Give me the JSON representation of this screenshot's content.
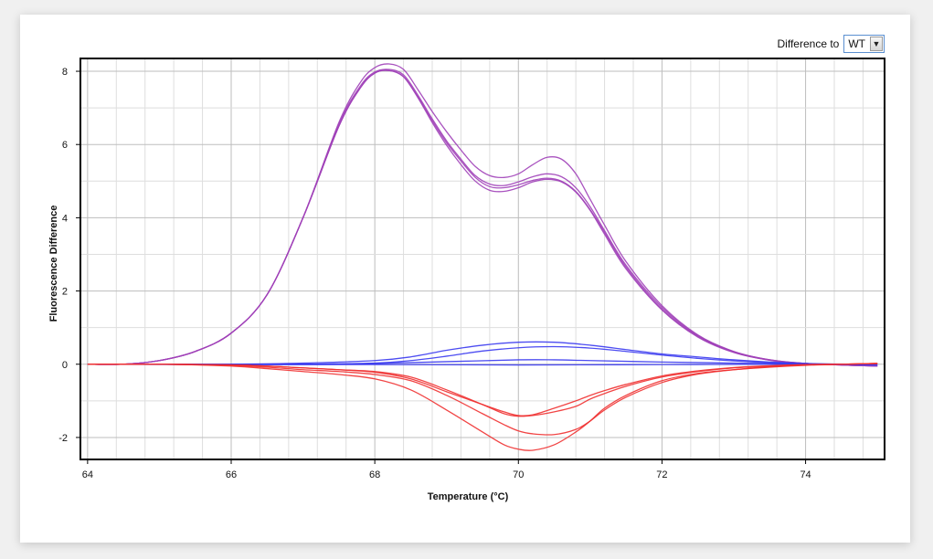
{
  "toolbar": {
    "difference_label": "Difference to",
    "difference_value": "WT",
    "dropdown_icon": "chevron-down-icon"
  },
  "chart_data": {
    "type": "line",
    "title": "",
    "xlabel": "Temperature (°C)",
    "ylabel": "Fluorescence Difference",
    "xlim": [
      63.9,
      75.1
    ],
    "ylim": [
      -2.6,
      8.35
    ],
    "xticks": [
      64,
      66,
      68,
      70,
      72,
      74
    ],
    "yticks": [
      -2,
      0,
      2,
      4,
      6,
      8
    ],
    "grid": true,
    "colors": {
      "purple": "#a040b8",
      "blue": "#3838f0",
      "red": "#f03030"
    },
    "series": [
      {
        "group": "purple",
        "x": [
          64.0,
          64.5,
          65.0,
          65.5,
          66.0,
          66.5,
          67.0,
          67.5,
          67.8,
          68.0,
          68.2,
          68.4,
          68.6,
          68.8,
          69.0,
          69.2,
          69.4,
          69.6,
          69.8,
          70.0,
          70.2,
          70.4,
          70.6,
          70.8,
          71.0,
          71.2,
          71.5,
          72.0,
          72.5,
          73.0,
          73.5,
          74.0,
          74.5,
          75.0
        ],
        "y": [
          0.0,
          0.0,
          0.1,
          0.35,
          0.85,
          1.9,
          4.0,
          6.6,
          7.7,
          8.1,
          8.2,
          8.05,
          7.5,
          6.9,
          6.35,
          5.85,
          5.4,
          5.15,
          5.1,
          5.2,
          5.45,
          5.65,
          5.6,
          5.2,
          4.5,
          3.8,
          2.8,
          1.6,
          0.8,
          0.35,
          0.12,
          0.02,
          -0.02,
          -0.05
        ]
      },
      {
        "group": "purple",
        "x": [
          64.0,
          64.5,
          65.0,
          65.5,
          66.0,
          66.5,
          67.0,
          67.5,
          67.8,
          68.0,
          68.2,
          68.4,
          68.6,
          68.8,
          69.0,
          69.2,
          69.4,
          69.6,
          69.8,
          70.0,
          70.2,
          70.4,
          70.6,
          70.8,
          71.0,
          71.2,
          71.5,
          72.0,
          72.5,
          73.0,
          73.5,
          74.0,
          74.5,
          75.0
        ],
        "y": [
          0.0,
          0.0,
          0.1,
          0.35,
          0.85,
          1.9,
          4.0,
          6.55,
          7.6,
          7.98,
          8.05,
          7.9,
          7.35,
          6.7,
          6.1,
          5.6,
          5.15,
          4.92,
          4.88,
          4.98,
          5.12,
          5.2,
          5.12,
          4.82,
          4.3,
          3.65,
          2.7,
          1.55,
          0.78,
          0.34,
          0.12,
          0.02,
          -0.02,
          -0.05
        ]
      },
      {
        "group": "purple",
        "x": [
          64.0,
          64.5,
          65.0,
          65.5,
          66.0,
          66.5,
          67.0,
          67.5,
          67.8,
          68.0,
          68.2,
          68.4,
          68.6,
          68.8,
          69.0,
          69.2,
          69.4,
          69.6,
          69.8,
          70.0,
          70.2,
          70.4,
          70.6,
          70.8,
          71.0,
          71.2,
          71.5,
          72.0,
          72.5,
          73.0,
          73.5,
          74.0,
          74.5,
          75.0
        ],
        "y": [
          0.0,
          0.0,
          0.1,
          0.35,
          0.85,
          1.9,
          4.0,
          6.5,
          7.55,
          7.95,
          8.02,
          7.85,
          7.3,
          6.65,
          6.05,
          5.55,
          5.1,
          4.85,
          4.82,
          4.9,
          5.02,
          5.08,
          5.0,
          4.72,
          4.22,
          3.6,
          2.65,
          1.5,
          0.76,
          0.33,
          0.11,
          0.02,
          -0.02,
          -0.05
        ]
      },
      {
        "group": "purple",
        "x": [
          64.0,
          64.5,
          65.0,
          65.5,
          66.0,
          66.5,
          67.0,
          67.5,
          67.8,
          68.0,
          68.2,
          68.4,
          68.6,
          68.8,
          69.0,
          69.2,
          69.4,
          69.6,
          69.8,
          70.0,
          70.2,
          70.4,
          70.6,
          70.8,
          71.0,
          71.2,
          71.5,
          72.0,
          72.5,
          73.0,
          73.5,
          74.0,
          74.5,
          75.0
        ],
        "y": [
          0.0,
          0.0,
          0.1,
          0.35,
          0.85,
          1.9,
          4.0,
          6.5,
          7.55,
          7.95,
          8.02,
          7.85,
          7.28,
          6.6,
          5.98,
          5.45,
          5.0,
          4.75,
          4.72,
          4.82,
          4.98,
          5.05,
          4.98,
          4.7,
          4.2,
          3.55,
          2.6,
          1.48,
          0.74,
          0.32,
          0.11,
          0.02,
          -0.02,
          -0.05
        ]
      },
      {
        "group": "blue",
        "x": [
          64.0,
          65.0,
          66.0,
          67.0,
          68.0,
          68.5,
          69.0,
          69.5,
          70.0,
          70.5,
          71.0,
          71.5,
          72.0,
          72.5,
          73.0,
          73.5,
          74.0,
          75.0
        ],
        "y": [
          0.0,
          0.0,
          0.0,
          0.03,
          0.1,
          0.2,
          0.38,
          0.52,
          0.6,
          0.6,
          0.52,
          0.4,
          0.28,
          0.2,
          0.12,
          0.06,
          0.02,
          -0.02
        ]
      },
      {
        "group": "blue",
        "x": [
          64.0,
          65.0,
          66.0,
          67.0,
          68.0,
          68.5,
          69.0,
          69.5,
          70.0,
          70.5,
          71.0,
          71.5,
          72.0,
          72.5,
          73.0,
          73.5,
          74.0,
          75.0
        ],
        "y": [
          0.0,
          0.0,
          0.0,
          0.0,
          0.03,
          0.1,
          0.22,
          0.36,
          0.45,
          0.48,
          0.44,
          0.35,
          0.25,
          0.16,
          0.09,
          0.04,
          0.01,
          -0.02
        ]
      },
      {
        "group": "blue",
        "x": [
          64.0,
          65.0,
          66.0,
          67.0,
          68.0,
          69.0,
          70.0,
          70.5,
          71.0,
          72.0,
          73.0,
          74.0,
          75.0
        ],
        "y": [
          0.0,
          0.0,
          0.0,
          0.0,
          0.02,
          0.07,
          0.12,
          0.12,
          0.1,
          0.06,
          0.03,
          0.01,
          0.0
        ]
      },
      {
        "group": "blue",
        "x": [
          64.0,
          66.0,
          68.0,
          70.0,
          72.0,
          74.0,
          75.0
        ],
        "y": [
          0.0,
          -0.01,
          -0.01,
          -0.02,
          -0.01,
          0.0,
          0.0
        ]
      },
      {
        "group": "red",
        "x": [
          64.0,
          65.0,
          66.0,
          66.5,
          67.0,
          67.5,
          68.0,
          68.5,
          69.0,
          69.5,
          69.8,
          70.0,
          70.2,
          70.5,
          70.8,
          71.0,
          71.2,
          71.5,
          72.0,
          72.5,
          73.0,
          73.5,
          74.0,
          74.5,
          75.0
        ],
        "y": [
          0.0,
          0.0,
          -0.05,
          -0.12,
          -0.2,
          -0.28,
          -0.4,
          -0.7,
          -1.25,
          -1.85,
          -2.2,
          -2.32,
          -2.35,
          -2.2,
          -1.85,
          -1.55,
          -1.2,
          -0.85,
          -0.45,
          -0.25,
          -0.15,
          -0.08,
          -0.03,
          0.0,
          0.02
        ]
      },
      {
        "group": "red",
        "x": [
          64.0,
          65.0,
          66.0,
          66.5,
          67.0,
          67.5,
          68.0,
          68.5,
          69.0,
          69.5,
          69.8,
          70.0,
          70.2,
          70.5,
          70.8,
          71.0,
          71.2,
          71.5,
          72.0,
          72.5,
          73.0,
          73.5,
          74.0,
          74.5,
          75.0
        ],
        "y": [
          0.0,
          0.0,
          -0.04,
          -0.08,
          -0.15,
          -0.2,
          -0.28,
          -0.45,
          -0.85,
          -1.35,
          -1.65,
          -1.82,
          -1.9,
          -1.92,
          -1.78,
          -1.55,
          -1.25,
          -0.9,
          -0.5,
          -0.27,
          -0.15,
          -0.07,
          -0.02,
          0.0,
          0.02
        ]
      },
      {
        "group": "red",
        "x": [
          64.0,
          65.0,
          66.0,
          66.5,
          67.0,
          67.5,
          68.0,
          68.5,
          69.0,
          69.5,
          69.8,
          70.0,
          70.2,
          70.5,
          70.8,
          71.0,
          71.2,
          71.5,
          72.0,
          72.5,
          73.0,
          73.5,
          74.0,
          74.5,
          75.0
        ],
        "y": [
          0.0,
          0.0,
          -0.02,
          -0.05,
          -0.1,
          -0.15,
          -0.2,
          -0.35,
          -0.7,
          -1.1,
          -1.35,
          -1.42,
          -1.4,
          -1.3,
          -1.15,
          -0.95,
          -0.8,
          -0.6,
          -0.35,
          -0.2,
          -0.1,
          -0.05,
          -0.01,
          0.0,
          0.02
        ]
      },
      {
        "group": "red",
        "x": [
          64.0,
          65.0,
          66.0,
          66.5,
          67.0,
          67.5,
          68.0,
          68.5,
          69.0,
          69.5,
          69.8,
          70.0,
          70.2,
          70.5,
          70.8,
          71.0,
          71.2,
          71.5,
          72.0,
          72.5,
          73.0,
          73.5,
          74.0,
          74.5,
          75.0
        ],
        "y": [
          0.0,
          0.0,
          -0.02,
          -0.05,
          -0.1,
          -0.15,
          -0.22,
          -0.4,
          -0.75,
          -1.1,
          -1.3,
          -1.4,
          -1.38,
          -1.2,
          -1.0,
          -0.85,
          -0.72,
          -0.55,
          -0.32,
          -0.18,
          -0.09,
          -0.04,
          -0.01,
          0.0,
          0.02
        ]
      }
    ]
  }
}
